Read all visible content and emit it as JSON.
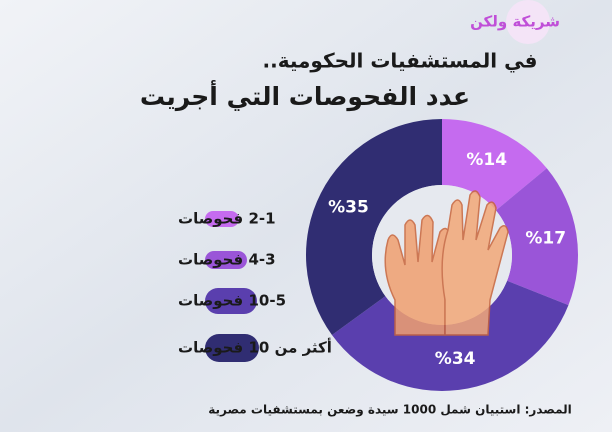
{
  "chart_data": {
    "type": "pie",
    "brand": "شريكة ولكن",
    "title": "في المستشفيات الحكومية..",
    "subtitle": "عدد الفحوصات التي أجريت",
    "categories": [
      "2-1 فحوصات",
      "4-3 فحوصات",
      "10-5 فحوصات",
      "أكثر من 10 فحوصات"
    ],
    "series": [
      {
        "values": [
          14,
          17,
          34,
          35
        ],
        "value_labels": [
          "%14",
          "%17",
          "%34",
          "%35"
        ],
        "colors": [
          "#c56bef",
          "#9a55d8",
          "#5a3fae",
          "#302d72"
        ]
      }
    ],
    "source": "المصدر: استبيان شمل 1000 سيدة وضعن بمستشفيات مصرية"
  }
}
